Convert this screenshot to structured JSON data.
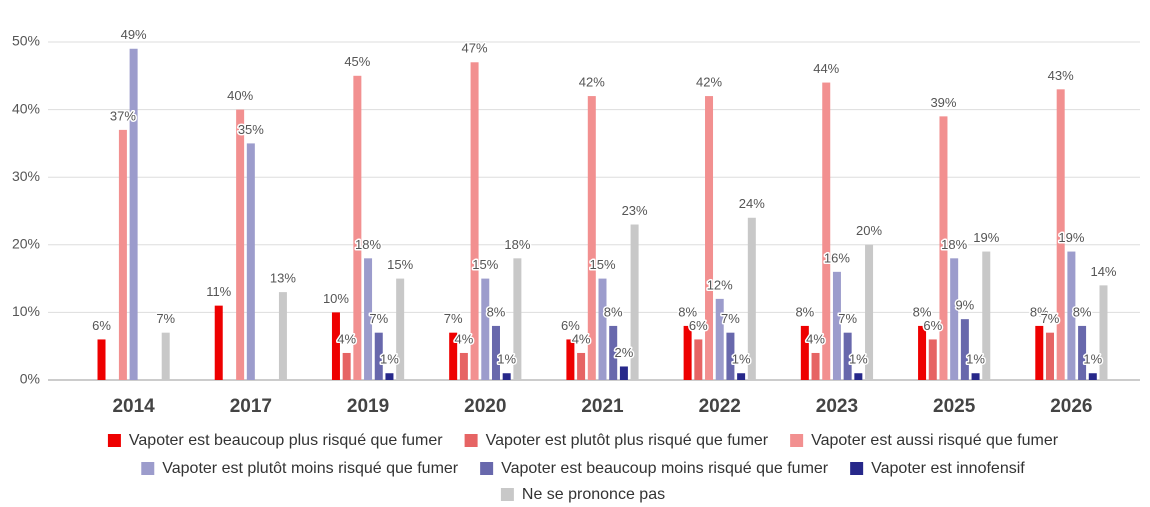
{
  "chart_data": {
    "type": "bar",
    "categories": [
      "2014",
      "2017",
      "2019",
      "2020",
      "2021",
      "2022",
      "2023",
      "2025",
      "2026"
    ],
    "series": [
      {
        "name": "Vapoter est beaucoup plus risqué que fumer",
        "color": "#ee0000",
        "values": [
          6,
          11,
          10,
          7,
          6,
          8,
          8,
          8,
          8
        ],
        "value_labels": [
          "6%",
          "11%",
          "10%",
          "7%",
          "6%",
          "8%",
          "8%",
          "8%",
          "8%"
        ]
      },
      {
        "name": "Vapoter est plutôt plus risqué que fumer",
        "color": "#e66464",
        "values": [
          null,
          null,
          4,
          4,
          4,
          6,
          4,
          6,
          7
        ],
        "value_labels": [
          null,
          null,
          "4%",
          "4%",
          "4%",
          "6%",
          "4%",
          "6%",
          "7%"
        ]
      },
      {
        "name": "Vapoter est aussi risqué que fumer",
        "color": "#f29090",
        "values": [
          37,
          40,
          45,
          47,
          42,
          42,
          44,
          39,
          43
        ],
        "value_labels": [
          "37%",
          "40%",
          "45%",
          "47%",
          "42%",
          "42%",
          "44%",
          "39%",
          "43%"
        ]
      },
      {
        "name": "Vapoter est plutôt moins risqué que fumer",
        "color": "#9c9ccc",
        "values": [
          49,
          35,
          18,
          15,
          15,
          12,
          16,
          18,
          19
        ],
        "value_labels": [
          "49%",
          "35%",
          "18%",
          "15%",
          "15%",
          "12%",
          "16%",
          "18%",
          "19%"
        ]
      },
      {
        "name": "Vapoter est beaucoup moins risqué que fumer",
        "color": "#6868ac",
        "values": [
          null,
          null,
          7,
          8,
          8,
          7,
          7,
          9,
          8
        ],
        "value_labels": [
          null,
          null,
          "7%",
          "8%",
          "8%",
          "7%",
          "7%",
          "9%",
          "8%"
        ]
      },
      {
        "name": "Vapoter est innofensif",
        "color": "#27288a",
        "values": [
          null,
          null,
          1,
          1,
          2,
          1,
          1,
          1,
          1
        ],
        "value_labels": [
          null,
          null,
          "1%",
          "1%",
          "2%",
          "1%",
          "1%",
          "1%",
          "1%"
        ]
      },
      {
        "name": "Ne se prononce pas",
        "color": "#c8c8c8",
        "values": [
          7,
          13,
          15,
          18,
          23,
          24,
          20,
          19,
          14
        ],
        "value_labels": [
          "7%",
          "13%",
          "15%",
          "18%",
          "23%",
          "24%",
          "20%",
          "19%",
          "14%"
        ]
      }
    ],
    "ylim": [
      0,
      50
    ],
    "yticks": [
      {
        "value": 0,
        "label": "0%"
      },
      {
        "value": 10,
        "label": "10%"
      },
      {
        "value": 20,
        "label": "20%"
      },
      {
        "value": 30,
        "label": "30%"
      },
      {
        "value": 40,
        "label": "40%"
      },
      {
        "value": 50,
        "label": "50%"
      }
    ],
    "grid": true
  }
}
